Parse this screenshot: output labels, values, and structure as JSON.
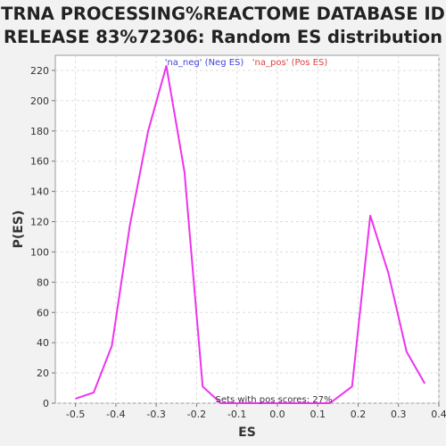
{
  "chart_data": {
    "type": "line",
    "title_line1": "TRNA PROCESSING%REACTOME DATABASE ID",
    "title_line2": "RELEASE 83%72306: Random ES distribution",
    "xlabel": "ES",
    "ylabel": "P(ES)",
    "xlim": [
      -0.55,
      0.4
    ],
    "ylim": [
      0,
      230
    ],
    "x_ticks": [
      -0.5,
      -0.4,
      -0.3,
      -0.2,
      -0.1,
      0.0,
      0.1,
      0.2,
      0.3,
      0.4
    ],
    "x_tick_labels": [
      "-0.5",
      "-0.4",
      "-0.3",
      "-0.2",
      "-0.1",
      "0.0",
      "0.1",
      "0.2",
      "0.3",
      "0.4"
    ],
    "y_ticks": [
      0,
      20,
      40,
      60,
      80,
      100,
      120,
      140,
      160,
      180,
      200,
      220
    ],
    "y_tick_labels": [
      "0",
      "20",
      "40",
      "60",
      "80",
      "100",
      "120",
      "140",
      "160",
      "180",
      "200",
      "220"
    ],
    "grid": true,
    "legend": [
      {
        "label": "'na_neg' (Neg ES)",
        "color": "#4040dd"
      },
      {
        "label": "'na_pos' (Pos ES)",
        "color": "#dd4040"
      }
    ],
    "legend_placement": "top",
    "series": [
      {
        "color": "#ee33ee",
        "x": [
          -0.5,
          -0.455,
          -0.41,
          -0.365,
          -0.32,
          -0.275,
          -0.23,
          -0.185,
          -0.14,
          -0.095,
          -0.05,
          -0.005,
          0.04,
          0.085,
          0.13,
          0.185,
          0.23,
          0.275,
          0.32,
          0.365
        ],
        "y": [
          3,
          7,
          38,
          118,
          180,
          223,
          153,
          11,
          0,
          0,
          0,
          0,
          0,
          0,
          0,
          11,
          124,
          86,
          34,
          13
        ]
      }
    ],
    "annotation": "Sets with pos scores: 27%"
  }
}
